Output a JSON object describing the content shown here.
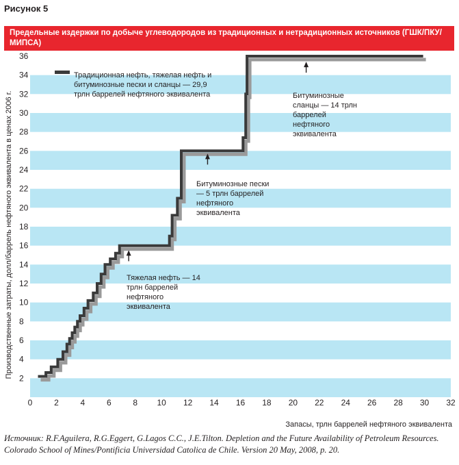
{
  "figure_label": "Рисунок 5",
  "title": "Предельные издержки по добыче углеводородов из традиционных и нетрадиционных источников (ГШК/ПКУ/МИПСА)",
  "source": "Источник: R.F.Aguilera, R.G.Eggert, G.Lagos C.C., J.E.Tilton. Depletion and the Future Availability of Petroleum Resources. Colorado School of Mines/Pontificia Universidad Catolica de Chile. Version 20 May, 2008, p. 20.",
  "colors": {
    "banner": "#e8262e",
    "band": "#b9e6f4",
    "line": "#3a3a3a",
    "shadow": "#9a9a9a"
  },
  "chart_data": {
    "type": "line",
    "title": "",
    "xlabel": "Запасы, трлн баррелей нефтяного эквивалента",
    "ylabel": "Производственные затраты, долл/баррель нефтяного эквивалента в ценах 2006 г.",
    "xlim": [
      0,
      32
    ],
    "ylim": [
      0,
      36
    ],
    "x_ticks": [
      "0",
      "2",
      "4",
      "6",
      "8",
      "10",
      "12",
      "14",
      "16",
      "18",
      "20",
      "22",
      "24",
      "26",
      "28",
      "30",
      "32"
    ],
    "y_ticks": [
      "2",
      "4",
      "6",
      "8",
      "10",
      "12",
      "14",
      "16",
      "18",
      "20",
      "22",
      "24",
      "26",
      "28",
      "30",
      "32",
      "34",
      "36"
    ],
    "grid": "horizontal alternating bands",
    "series": [
      {
        "name": "Традиционная нефть, тяжелая нефть и битуминозные пески и сланцы — 29,9 трлн баррелей нефтяного эквивалента",
        "style": "step",
        "x": [
          0.6,
          1.2,
          1.2,
          1.6,
          1.6,
          2.1,
          2.1,
          2.5,
          2.5,
          2.8,
          2.8,
          3.0,
          3.0,
          3.2,
          3.2,
          3.4,
          3.4,
          3.6,
          3.6,
          3.8,
          3.8,
          4.1,
          4.1,
          4.4,
          4.4,
          4.8,
          4.8,
          5.1,
          5.1,
          5.4,
          5.4,
          5.7,
          5.7,
          6.1,
          6.1,
          6.5,
          6.5,
          6.8,
          6.8,
          10.6,
          10.6,
          10.8,
          10.8,
          11.2,
          11.2,
          11.5,
          11.5,
          16.2,
          16.2,
          16.4,
          16.4,
          16.5,
          16.5,
          29.9
        ],
        "y": [
          2.2,
          2.2,
          2.6,
          2.6,
          3.2,
          3.2,
          4.0,
          4.0,
          4.8,
          4.8,
          5.6,
          5.6,
          6.2,
          6.2,
          6.8,
          6.8,
          7.4,
          7.4,
          8.0,
          8.0,
          8.6,
          8.6,
          9.4,
          9.4,
          10.2,
          10.2,
          11.0,
          11.0,
          12.0,
          12.0,
          13.0,
          13.0,
          14.0,
          14.0,
          14.6,
          14.6,
          15.2,
          15.2,
          16.0,
          16.0,
          17.0,
          17.0,
          19.2,
          19.2,
          21.0,
          21.0,
          26.0,
          26.0,
          27.4,
          27.4,
          32.0,
          32.0,
          36.0,
          36.0
        ]
      }
    ],
    "annotations": [
      {
        "text": "Тяжелая нефть — 14 трлн баррелей нефтяного эквивалента",
        "arrow_x": 7.5,
        "arrow_y": 15.8
      },
      {
        "text": "Битуминозные пески — 5 трлн баррелей нефтяного эквивалента",
        "arrow_x": 13.5,
        "arrow_y": 26
      },
      {
        "text": "Битуминозные сланцы — 14 трлн баррелей нефтяного эквивалента",
        "arrow_x": 21,
        "arrow_y": 35.7
      }
    ]
  }
}
